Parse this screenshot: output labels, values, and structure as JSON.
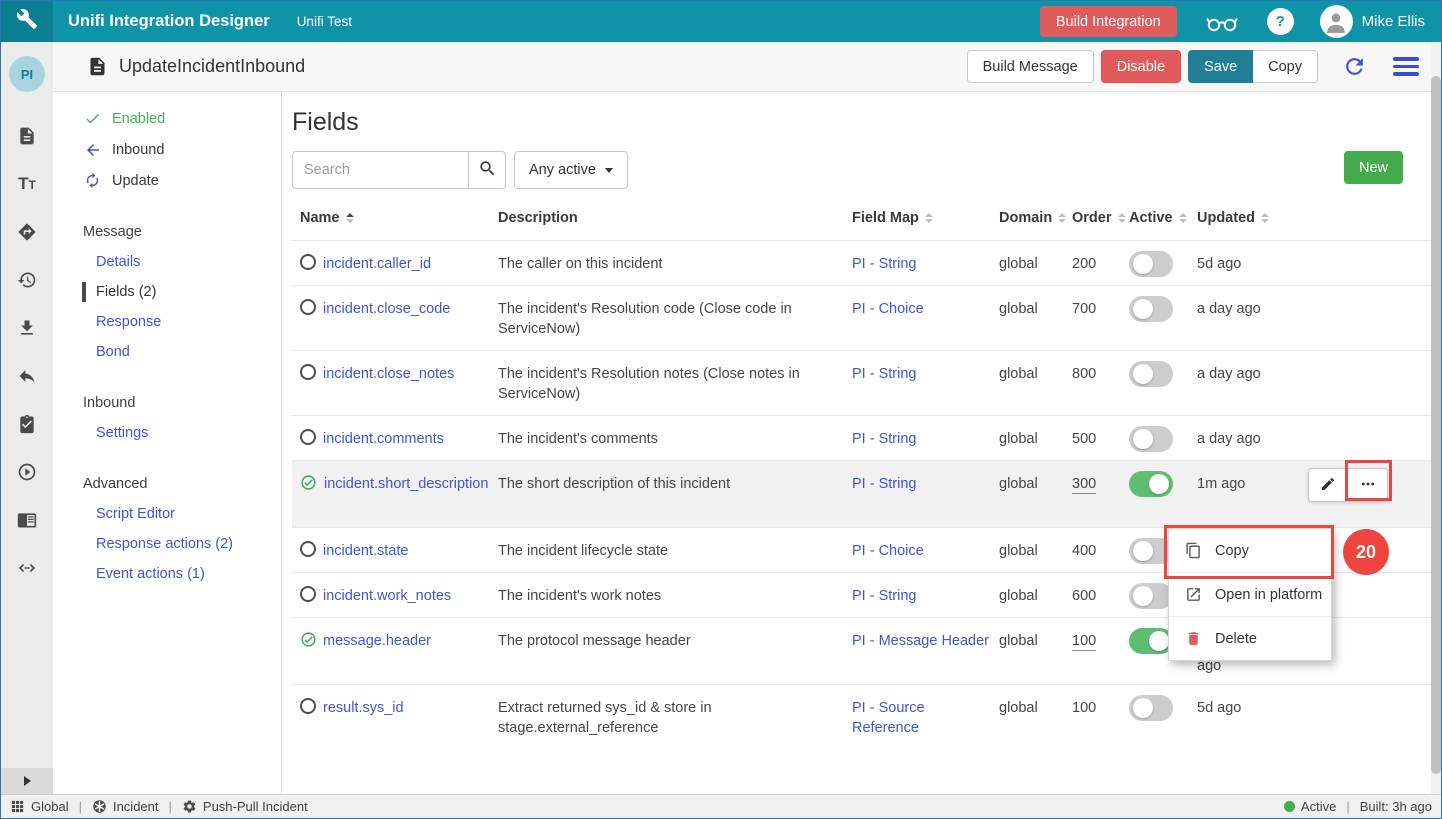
{
  "colors": {
    "brand_teal": "#0f93a8",
    "brand_teal_dark": "#0b7e92",
    "danger_red": "#e05c5c",
    "save_teal": "#1f7f95",
    "new_green": "#44ab4c",
    "toggle_green": "#5ebd74",
    "link_indigo": "#3d56d5",
    "icon_indigo": "#3a50c9",
    "enabled_green": "#43b159",
    "annotation_red": "#e8463f",
    "status_green": "#44ad4c"
  },
  "topbar": {
    "app_title": "Unifi Integration Designer",
    "workspace": "Unifi Test",
    "build_integration_label": "Build Integration",
    "user_name": "Mike Ellis"
  },
  "titlebar": {
    "avatar_initials": "PI",
    "document_title": "UpdateIncidentInbound",
    "build_message_label": "Build Message",
    "disable_label": "Disable",
    "save_label": "Save",
    "copy_label": "Copy"
  },
  "icon_rail": [
    "document",
    "text-format",
    "directions",
    "history",
    "download",
    "reply",
    "task-check",
    "play-circle",
    "book",
    "code"
  ],
  "sidebar": {
    "status_items": [
      {
        "icon": "check",
        "label": "Enabled",
        "style": "enabled"
      },
      {
        "icon": "arrow-left",
        "label": "Inbound",
        "style": "default"
      },
      {
        "icon": "sync",
        "label": "Update",
        "style": "default"
      }
    ],
    "sections": [
      {
        "title": "Message",
        "items": [
          {
            "label": "Details",
            "active": false
          },
          {
            "label": "Fields (2)",
            "active": true
          },
          {
            "label": "Response",
            "active": false
          },
          {
            "label": "Bond",
            "active": false
          }
        ]
      },
      {
        "title": "Inbound",
        "items": [
          {
            "label": "Settings",
            "active": false
          }
        ]
      },
      {
        "title": "Advanced",
        "items": [
          {
            "label": "Script Editor",
            "active": false
          },
          {
            "label": "Response actions (2)",
            "active": false
          },
          {
            "label": "Event actions (1)",
            "active": false
          }
        ]
      }
    ]
  },
  "main": {
    "heading": "Fields",
    "search_placeholder": "Search",
    "filter_label": "Any active",
    "new_button_label": "New",
    "table": {
      "columns": [
        {
          "label": "Name",
          "sortable": true,
          "sorted": "asc"
        },
        {
          "label": "Description",
          "sortable": false
        },
        {
          "label": "Field Map",
          "sortable": true
        },
        {
          "label": "Domain",
          "sortable": true
        },
        {
          "label": "Order",
          "sortable": true
        },
        {
          "label": "Active",
          "sortable": true
        },
        {
          "label": "Updated",
          "sortable": true
        }
      ],
      "rows": [
        {
          "status": "none",
          "name": "incident.caller_id",
          "description": "The caller on this incident",
          "field_map": "PI - String",
          "domain": "global",
          "order": "200",
          "active": false,
          "updated": "5d ago"
        },
        {
          "status": "none",
          "name": "incident.close_code",
          "description": "The incident's Resolution code (Close code in ServiceNow)",
          "field_map": "PI - Choice",
          "domain": "global",
          "order": "700",
          "active": false,
          "updated": "a day ago"
        },
        {
          "status": "none",
          "name": "incident.close_notes",
          "description": "The incident's Resolution notes (Close notes in ServiceNow)",
          "field_map": "PI - String",
          "domain": "global",
          "order": "800",
          "active": false,
          "updated": "a day ago"
        },
        {
          "status": "none",
          "name": "incident.comments",
          "description": "The incident's comments",
          "field_map": "PI - String",
          "domain": "global",
          "order": "500",
          "active": false,
          "updated": "a day ago"
        },
        {
          "status": "check",
          "name": "incident.short_description",
          "description": "The short description of this incident",
          "field_map": "PI - String",
          "domain": "global",
          "order": "300",
          "order_underlined": true,
          "active": true,
          "updated": "1m ago",
          "selected": true,
          "row_actions": true
        },
        {
          "status": "none",
          "name": "incident.state",
          "description": "The incident lifecycle state",
          "field_map": "PI - Choice",
          "domain": "global",
          "order": "400",
          "active": false,
          "updated": ""
        },
        {
          "status": "none",
          "name": "incident.work_notes",
          "description": "The incident's work notes",
          "field_map": "PI - String",
          "domain": "global",
          "order": "600",
          "active": false,
          "updated": ""
        },
        {
          "status": "check",
          "name": "message.header",
          "description": "The protocol message header",
          "field_map": "PI - Message Header",
          "domain": "global",
          "order": "100",
          "order_underlined": true,
          "active": true,
          "updated": "ago",
          "updated_offset": true
        },
        {
          "status": "none",
          "name": "result.sys_id",
          "description": "Extract returned sys_id & store in stage.external_reference",
          "field_map": "PI - Source Reference",
          "domain": "global",
          "order": "100",
          "active": false,
          "updated": "5d ago"
        }
      ]
    }
  },
  "context_menu": {
    "items": [
      {
        "icon": "copy",
        "label": "Copy",
        "highlighted": true
      },
      {
        "icon": "open-external",
        "label": "Open in platform"
      },
      {
        "icon": "trash",
        "label": "Delete",
        "danger": true
      }
    ]
  },
  "annotation": {
    "badge": "20"
  },
  "statusbar": {
    "scope": "Global",
    "entity": "Incident",
    "process": "Push-Pull Incident",
    "status": "Active",
    "built": "Built: 3h ago"
  }
}
